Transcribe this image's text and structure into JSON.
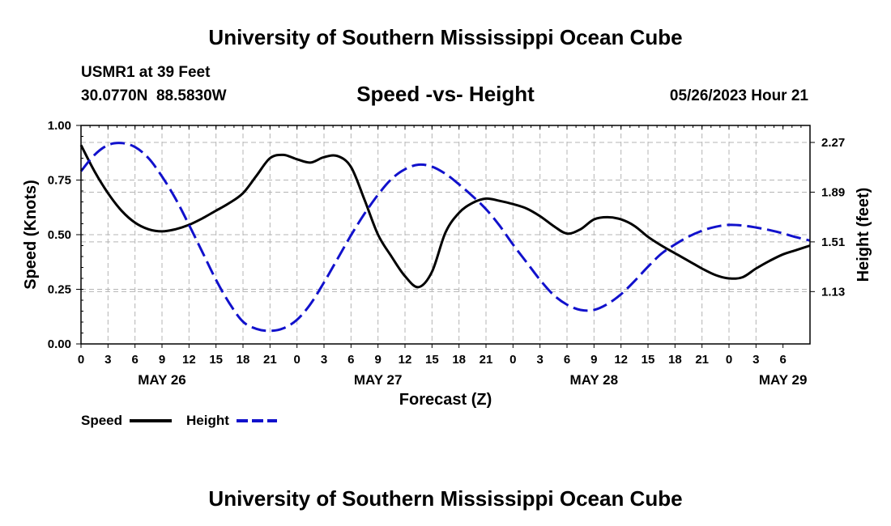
{
  "page": {
    "header_title": "University of Southern Mississippi Ocean Cube",
    "footer_title": "University of Southern Mississippi Ocean Cube",
    "station_line": "USMR1 at 39 Feet",
    "coords_line": "30.0770N  88.5830W",
    "date_line": "05/26/2023 Hour 21"
  },
  "colors": {
    "speed": "#000000",
    "height": "#1111cc",
    "grid": "#b4b4b4"
  },
  "chart_data": {
    "type": "line",
    "title": "Speed -vs- Height",
    "xlabel": "Forecast (Z)",
    "ylabel_left": "Speed (Knots)",
    "ylabel_right": "Height (feet)",
    "x_range_hours": [
      0,
      81
    ],
    "x_tick_step_hours": 3,
    "x_tick_labels": [
      "0",
      "3",
      "6",
      "9",
      "12",
      "15",
      "18",
      "21",
      "0",
      "3",
      "6",
      "9",
      "12",
      "15",
      "18",
      "21",
      "0",
      "3",
      "6",
      "9",
      "12",
      "15",
      "18",
      "21",
      "0",
      "3",
      "6"
    ],
    "date_labels": [
      {
        "label": "MAY 26",
        "hour": 9
      },
      {
        "label": "MAY 27",
        "hour": 33
      },
      {
        "label": "MAY 28",
        "hour": 57
      },
      {
        "label": "MAY 29",
        "hour": 78
      }
    ],
    "y_left": {
      "range": [
        0,
        1
      ],
      "ticks": [
        "0.00",
        "0.25",
        "0.50",
        "0.75",
        "1.00"
      ]
    },
    "y_right": {
      "range": [
        0.73,
        2.4
      ],
      "ticks": [
        1.13,
        1.51,
        1.89,
        2.27
      ],
      "tick_labels": [
        "1.13",
        "1.51",
        "1.89",
        "2.27"
      ]
    },
    "grid": true,
    "legend": {
      "position": "bottom-left",
      "entries": [
        "Speed",
        "Height"
      ]
    },
    "series": [
      {
        "name": "Speed",
        "axis": "left",
        "style": "solid",
        "x": [
          0,
          1.5,
          3,
          4.5,
          6,
          7.5,
          9,
          10.5,
          12,
          13.5,
          15,
          16.5,
          18,
          19.5,
          21,
          22.5,
          24,
          25.5,
          27,
          28.5,
          30,
          31.5,
          33,
          34.5,
          36,
          37.5,
          39,
          40.5,
          42,
          43.5,
          45,
          46.5,
          48,
          49.5,
          51,
          52.5,
          54,
          55.5,
          57,
          58.5,
          60,
          61.5,
          63,
          64.5,
          66,
          67.5,
          69,
          70.5,
          72,
          73.5,
          75,
          76.5,
          78,
          79.5,
          81
        ],
        "values": [
          0.91,
          0.79,
          0.69,
          0.61,
          0.555,
          0.525,
          0.515,
          0.525,
          0.545,
          0.575,
          0.61,
          0.645,
          0.69,
          0.77,
          0.85,
          0.865,
          0.845,
          0.83,
          0.855,
          0.86,
          0.81,
          0.66,
          0.5,
          0.4,
          0.31,
          0.26,
          0.33,
          0.51,
          0.6,
          0.645,
          0.665,
          0.655,
          0.64,
          0.62,
          0.585,
          0.54,
          0.505,
          0.525,
          0.57,
          0.58,
          0.57,
          0.54,
          0.49,
          0.45,
          0.415,
          0.38,
          0.345,
          0.315,
          0.3,
          0.305,
          0.345,
          0.38,
          0.41,
          0.43,
          0.45
        ]
      },
      {
        "name": "Height",
        "axis": "right",
        "style": "dashed",
        "x": [
          0,
          1.5,
          3,
          4.5,
          6,
          7.5,
          9,
          10.5,
          12,
          13.5,
          15,
          16.5,
          18,
          19.5,
          21,
          22.5,
          24,
          25.5,
          27,
          28.5,
          30,
          31.5,
          33,
          34.5,
          36,
          37.5,
          39,
          40.5,
          42,
          43.5,
          45,
          46.5,
          48,
          49.5,
          51,
          52.5,
          54,
          55.5,
          57,
          58.5,
          60,
          61.5,
          63,
          64.5,
          66,
          67.5,
          69,
          70.5,
          72,
          73.5,
          75,
          76.5,
          78,
          79.5,
          81
        ],
        "values": [
          2.05,
          2.175,
          2.25,
          2.265,
          2.235,
          2.15,
          2.01,
          1.84,
          1.64,
          1.43,
          1.22,
          1.04,
          0.9,
          0.845,
          0.83,
          0.85,
          0.915,
          1.035,
          1.2,
          1.38,
          1.56,
          1.725,
          1.87,
          1.99,
          2.065,
          2.1,
          2.085,
          2.03,
          1.95,
          1.86,
          1.76,
          1.635,
          1.49,
          1.355,
          1.22,
          1.105,
          1.03,
          0.99,
          0.99,
          1.035,
          1.11,
          1.21,
          1.32,
          1.42,
          1.49,
          1.55,
          1.595,
          1.625,
          1.64,
          1.635,
          1.62,
          1.6,
          1.575,
          1.545,
          1.52
        ]
      }
    ]
  }
}
